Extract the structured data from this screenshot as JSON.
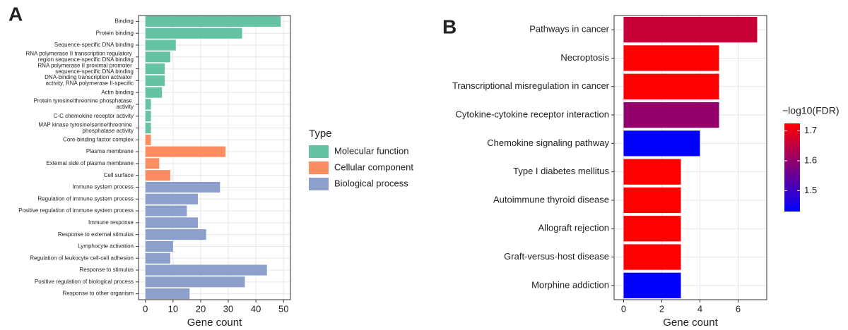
{
  "chart_data": [
    {
      "type": "hbar",
      "panel_label": "A",
      "x_label": "Gene count",
      "legend_title": "Type",
      "categories": [
        "Binding",
        "Protein binding",
        "Sequence-specific DNA binding",
        "RNA polymerase II transcription regulatory region sequence-specific DNA binding",
        "RNA polymerase II proximal promoter sequence-specific DNA binding",
        "DNA-binding transcription activator activity, RNA polymerase II-specific",
        "Actin binding",
        "Protein tyrosine/threonine phosphatase activity",
        "C-C chemokine receptor activity",
        "MAP kinase tyrosine/serine/threonine phosphatase activity",
        "Core-binding factor complex",
        "Plasma membrane",
        "External side of plasma membrane",
        "Cell surface",
        "Immune system process",
        "Regulation of immune system process",
        "Positive regulation of immune system process",
        "Immune response",
        "Response to external stimulus",
        "Lymphocyte activation",
        "Regulation of leukocyte cell-cell adhesion",
        "Response to stimulus",
        "Positive regulation of biological process",
        "Response to other organism"
      ],
      "series": [
        {
          "name": "Molecular function",
          "color": "#66c2a5",
          "values": [
            49,
            35,
            11,
            9,
            7,
            7,
            6,
            2,
            2,
            2,
            null,
            null,
            null,
            null,
            null,
            null,
            null,
            null,
            null,
            null,
            null,
            null,
            null,
            null
          ]
        },
        {
          "name": "Cellular component",
          "color": "#fc8d62",
          "values": [
            null,
            null,
            null,
            null,
            null,
            null,
            null,
            null,
            null,
            null,
            2,
            29,
            5,
            9,
            null,
            null,
            null,
            null,
            null,
            null,
            null,
            null,
            null,
            null
          ]
        },
        {
          "name": "Biological process",
          "color": "#8da0cb",
          "values": [
            null,
            null,
            null,
            null,
            null,
            null,
            null,
            null,
            null,
            null,
            null,
            null,
            null,
            null,
            27,
            19,
            15,
            19,
            22,
            10,
            9,
            44,
            36,
            16
          ]
        }
      ],
      "xlim": [
        -2.5,
        52.5
      ],
      "xticks": [
        0,
        10,
        20,
        30,
        40,
        50
      ],
      "grid": true
    },
    {
      "type": "hbar",
      "panel_label": "B",
      "x_label": "Gene count",
      "categories": [
        "Pathways in cancer",
        "Necroptosis",
        "Transcriptional misregulation in cancer",
        "Cytokine-cytokine receptor interaction",
        "Chemokine signaling pathway",
        "Type I diabetes mellitus",
        "Autoimmune thyroid disease",
        "Allograft rejection",
        "Graft-versus-host disease",
        "Morphine addiction"
      ],
      "values": [
        7,
        5,
        5,
        5,
        4,
        3,
        3,
        3,
        3,
        3
      ],
      "color_values": [
        1.66,
        1.73,
        1.73,
        1.6,
        1.43,
        1.73,
        1.73,
        1.73,
        1.73,
        1.43
      ],
      "color_scale": {
        "title": "−log10(FDR)",
        "low_color": "#0000ff",
        "high_color": "#ff0000",
        "limits": [
          1.43,
          1.725
        ],
        "ticks": [
          1.5,
          1.6,
          1.7
        ]
      },
      "xlim": [
        -0.5,
        7.5
      ],
      "xticks": [
        0,
        2,
        4,
        6
      ],
      "grid": true
    }
  ]
}
